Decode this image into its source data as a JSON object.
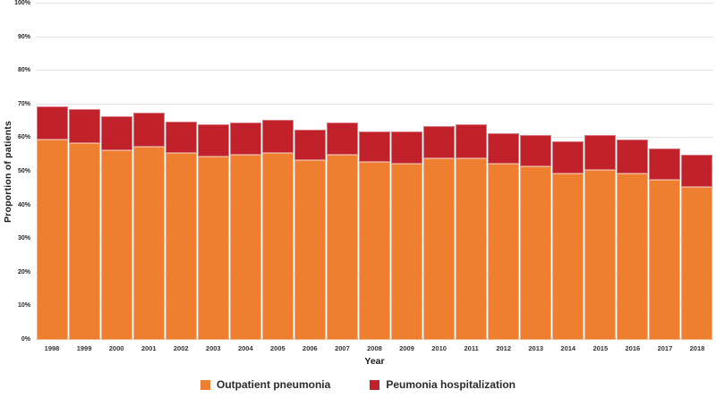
{
  "chart_data": {
    "type": "bar",
    "stacked": true,
    "title": "",
    "xlabel": "Year",
    "ylabel": "Proportion of patients",
    "ylim": [
      0,
      100
    ],
    "grid": true,
    "legend_position": "bottom",
    "yticks": [
      "0%",
      "10%",
      "20%",
      "30%",
      "40%",
      "50%",
      "60%",
      "70%",
      "80%",
      "90%",
      "100%"
    ],
    "categories": [
      "1998",
      "1999",
      "2000",
      "2001",
      "2002",
      "2003",
      "2004",
      "2005",
      "2006",
      "2007",
      "2008",
      "2009",
      "2010",
      "2011",
      "2012",
      "2013",
      "2014",
      "2015",
      "2016",
      "2017",
      "2018"
    ],
    "series": [
      {
        "name": "Outpatient pneumonia",
        "color": "#EE7E30",
        "values": [
          59.5,
          58.5,
          56.5,
          57.5,
          55.5,
          54.5,
          55.0,
          55.5,
          53.5,
          55.0,
          53.0,
          52.5,
          54.0,
          54.0,
          52.5,
          51.5,
          49.5,
          50.5,
          49.5,
          47.5,
          45.5
        ]
      },
      {
        "name": "Peumonia hospitalization",
        "color": "#C0212A",
        "values": [
          10.0,
          10.0,
          10.0,
          10.0,
          9.5,
          9.5,
          9.5,
          10.0,
          9.0,
          9.5,
          9.0,
          9.5,
          9.5,
          10.0,
          9.0,
          9.5,
          9.5,
          10.5,
          10.0,
          9.5,
          9.5
        ]
      }
    ]
  },
  "colors": {
    "gridline": "#e2e2e2",
    "tick_text": "#262626",
    "axis_title_text": "#1a1a1a",
    "legend_text": "#2b2b2b",
    "background": "#ffffff"
  }
}
